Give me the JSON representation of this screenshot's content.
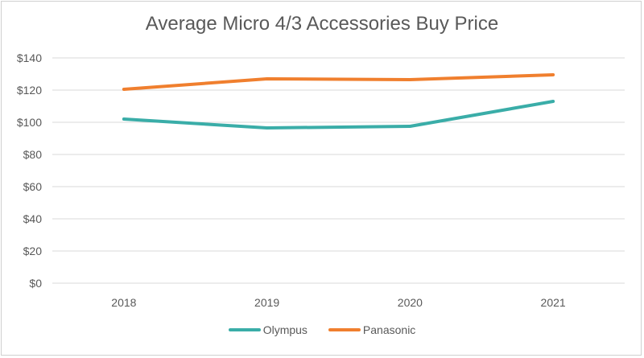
{
  "chart_data": {
    "type": "line",
    "title": "Average Micro 4/3 Accessories Buy Price",
    "xlabel": "",
    "ylabel": "",
    "categories": [
      "2018",
      "2019",
      "2020",
      "2021"
    ],
    "y_tick_labels": [
      "$0",
      "$20",
      "$40",
      "$60",
      "$80",
      "$100",
      "$120",
      "$140"
    ],
    "y_ticks": [
      0,
      20,
      40,
      60,
      80,
      100,
      120,
      140
    ],
    "ylim": [
      0,
      140
    ],
    "grid": true,
    "legend_position": "bottom",
    "series": [
      {
        "name": "Olympus",
        "color": "#3AADA8",
        "values": [
          102,
          96.5,
          97.5,
          113
        ]
      },
      {
        "name": "Panasonic",
        "color": "#F07F2E",
        "values": [
          120.5,
          127,
          126.5,
          129.5
        ]
      }
    ]
  }
}
